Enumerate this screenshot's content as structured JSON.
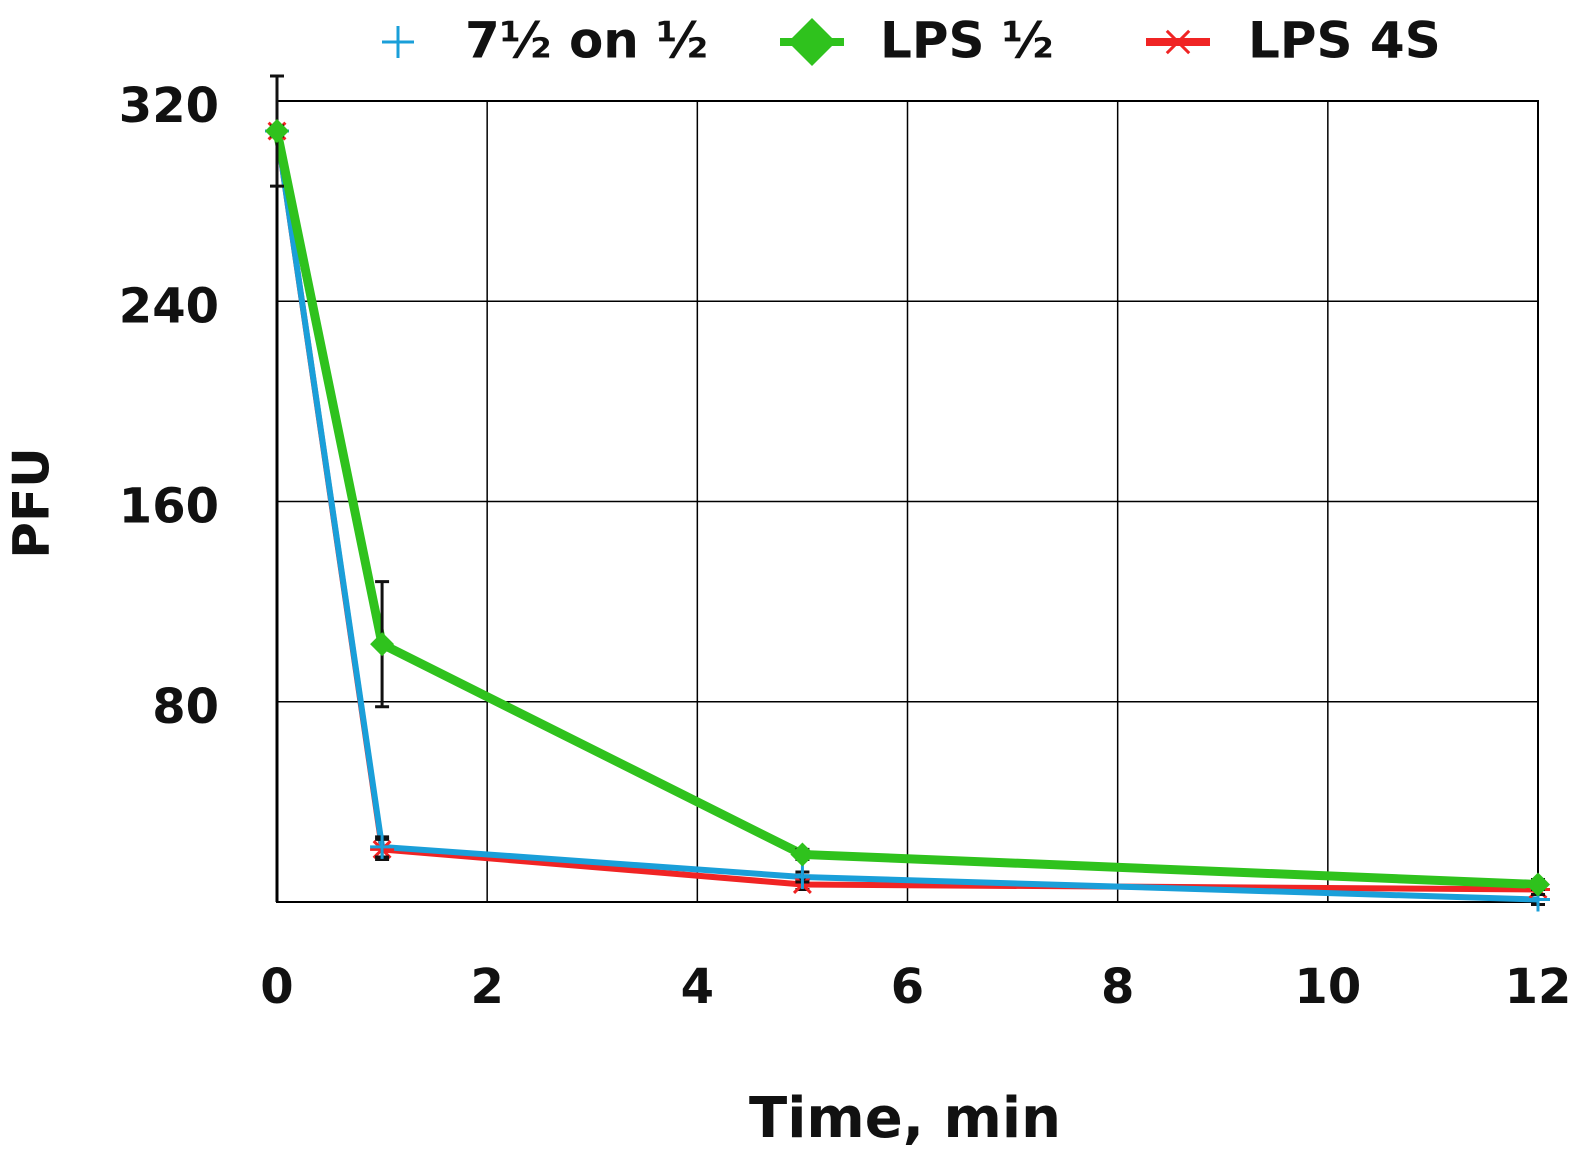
{
  "chart_data": {
    "type": "line",
    "x_label": "Time, min",
    "y_label": "PFU",
    "x": [
      0,
      1,
      5,
      12
    ],
    "series": [
      {
        "name": "7½ on ½",
        "color": "#1a9fd9",
        "marker": "plus",
        "values": [
          308,
          22,
          10,
          1
        ],
        "errors": [
          2,
          4,
          2,
          2
        ]
      },
      {
        "name": "LPS ½",
        "color": "#2fc21d",
        "marker": "diamond",
        "values": [
          308,
          103,
          19,
          7
        ],
        "errors": [
          22,
          25,
          2,
          2
        ]
      },
      {
        "name": "LPS 4S",
        "color": "#f02424",
        "marker": "star",
        "values": [
          308,
          21,
          7,
          5
        ],
        "errors": [
          2,
          4,
          2,
          2
        ]
      }
    ],
    "xlim": [
      0,
      12
    ],
    "xticks": [
      0,
      2,
      4,
      6,
      8,
      10,
      12
    ],
    "ylim": [
      0,
      320
    ],
    "yticks": [
      80,
      160,
      240,
      320
    ],
    "grid": true,
    "legend": "top"
  }
}
